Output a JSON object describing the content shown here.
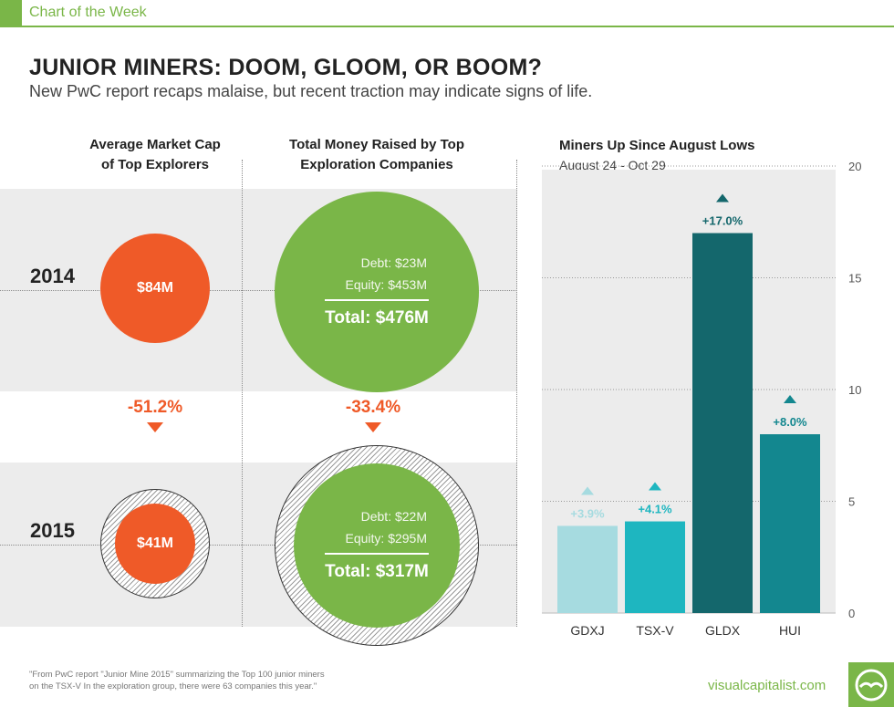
{
  "header": {
    "tag": "Chart of the Week"
  },
  "title": "JUNIOR MINERS: DOOM, GLOOM, OR BOOM?",
  "subtitle": "New PwC report recaps malaise, but recent traction may indicate signs of life.",
  "columns": {
    "market_cap_heading": [
      "Average Market Cap",
      "of Top Explorers"
    ],
    "money_raised_heading": [
      "Total Money Raised by Top",
      "Exploration Companies"
    ]
  },
  "years": {
    "y2014": {
      "label": "2014",
      "market_cap": "$84M",
      "debt": "Debt: $23M",
      "equity": "Equity: $453M",
      "total": "Total: $476M"
    },
    "y2015": {
      "label": "2015",
      "market_cap": "$41M",
      "debt": "Debt: $22M",
      "equity": "Equity: $295M",
      "total": "Total: $317M"
    }
  },
  "changes": {
    "market_cap": "-51.2%",
    "money_raised": "-33.4%"
  },
  "footnote": [
    "\"From PwC report \"Junior Mine 2015\" summarizing the Top 100 junior miners",
    "on the TSX-V  In the exploration group, there were 63 companies this year.\""
  ],
  "brand": "visualcapitalist.com",
  "colors": {
    "accent_green": "#7ab648",
    "accent_orange": "#ef5a28",
    "bar_colors": [
      "#a6dbe0",
      "#1eb6c0",
      "#14676c",
      "#13878f"
    ]
  },
  "chart_data": {
    "type": "bar",
    "title": "Miners Up Since August Lows",
    "subtitle": "August 24 - Oct 29",
    "categories": [
      "GDXJ",
      "TSX-V",
      "GLDX",
      "HUI"
    ],
    "values": [
      3.9,
      4.1,
      17.0,
      8.0
    ],
    "data_labels": [
      "+3.9%",
      "+4.1%",
      "+17.0%",
      "+8.0%"
    ],
    "yticks": [
      "0",
      "5",
      "10",
      "15",
      "20"
    ],
    "ylim": [
      0,
      20
    ],
    "grid": true,
    "y_axis_side": "right"
  }
}
